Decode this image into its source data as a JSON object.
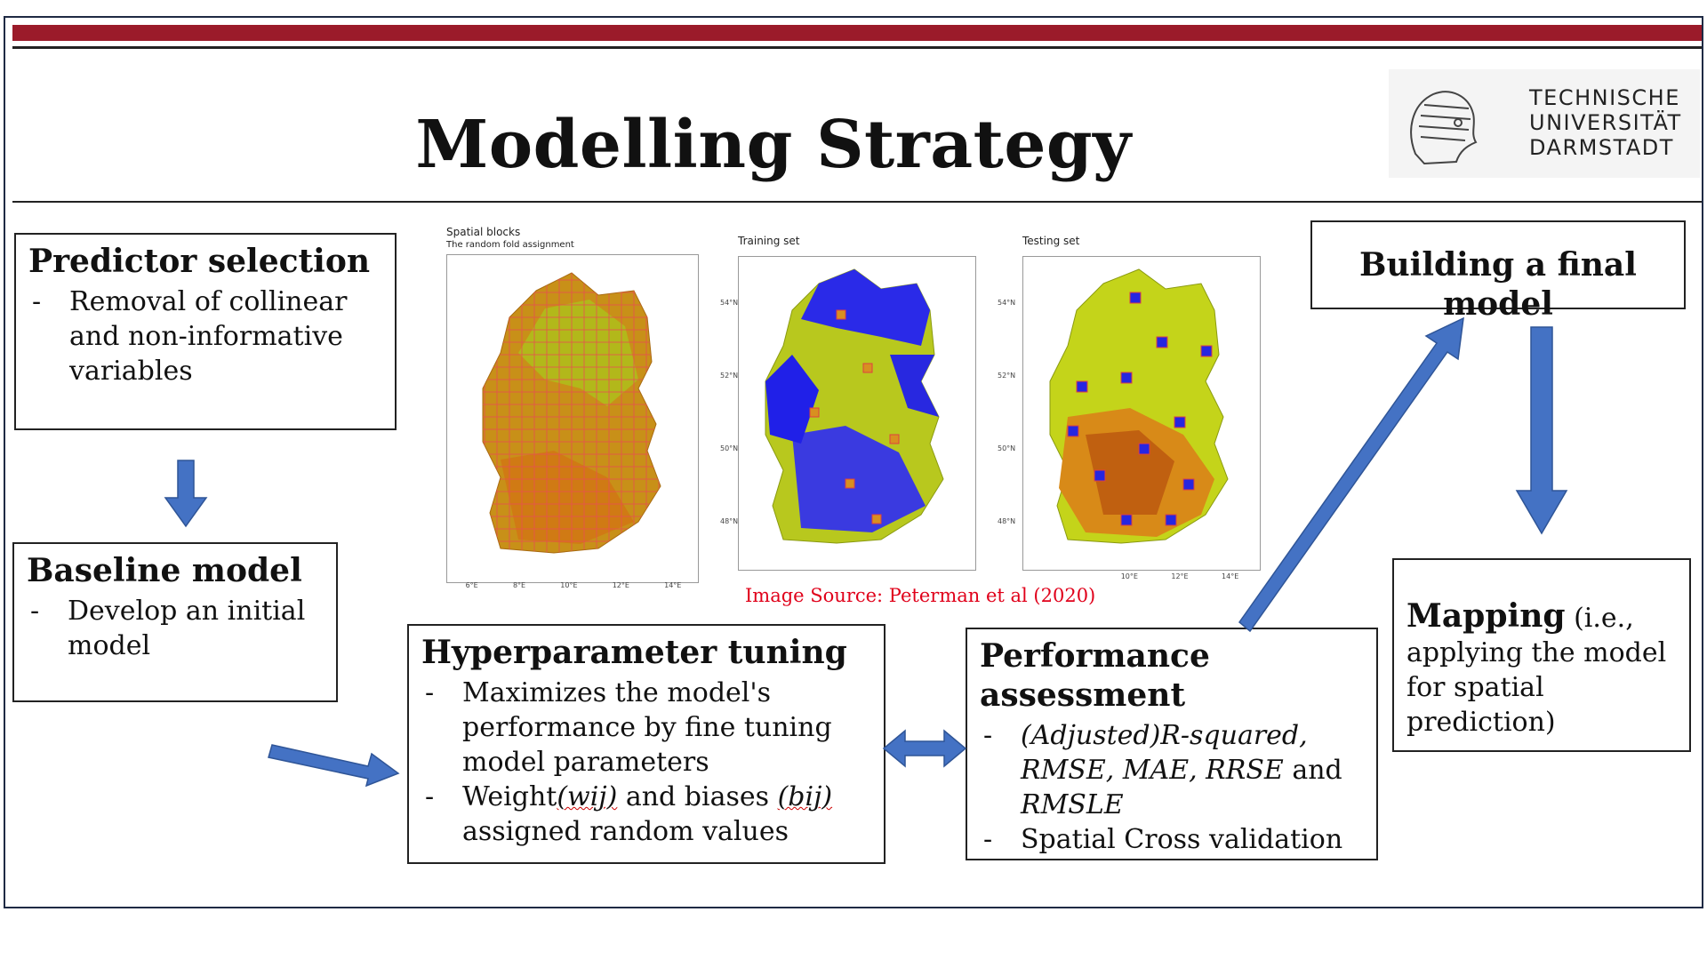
{
  "title": "Modelling Strategy",
  "logo": {
    "line1": "TECHNISCHE",
    "line2": "UNIVERSITÄT",
    "line3": "DARMSTADT"
  },
  "boxes": {
    "predictor": {
      "heading": "Predictor selection",
      "items": [
        "Removal of collinear and non-informative variables"
      ]
    },
    "baseline": {
      "heading": "Baseline model",
      "items": [
        "Develop an initial model"
      ]
    },
    "hyper": {
      "heading": "Hyperparameter tuning",
      "item1": "Maximizes the model's performance by fine tuning model parameters",
      "item2_a": "Weight",
      "item2_b": "(wij)",
      "item2_c": " and biases ",
      "item2_d": "(bij)",
      "item2_e": " assigned random values"
    },
    "performance": {
      "heading": "Performance assessment",
      "item1_a": "(Adjusted)R-squared, RMSE, MAE, RRSE",
      "item1_b": " and ",
      "item1_c": "RMSLE",
      "item2": "Spatial Cross validation"
    },
    "final": {
      "heading": "Building a final model"
    },
    "mapping": {
      "heading": "Mapping",
      "body": " (i.e., applying the model for spatial prediction)"
    }
  },
  "maps": {
    "source": "Image Source: Peterman et al (2020)",
    "panel1": {
      "title": "Spatial blocks",
      "subtitle": "The random fold assignment",
      "xticks": [
        "6°E",
        "8°E",
        "10°E",
        "12°E",
        "14°E"
      ]
    },
    "panel2": {
      "title": "Training set",
      "yticks": [
        "54°N",
        "52°N",
        "50°N",
        "48°N"
      ]
    },
    "panel3": {
      "title": "Testing set",
      "yticks": [
        "54°N",
        "52°N",
        "50°N",
        "48°N"
      ],
      "xticks": [
        "10°E",
        "12°E",
        "14°E"
      ]
    }
  },
  "colors": {
    "accent_bar": "#9b1b2a",
    "arrow": "#4472c4",
    "source_text": "#e0001a"
  }
}
